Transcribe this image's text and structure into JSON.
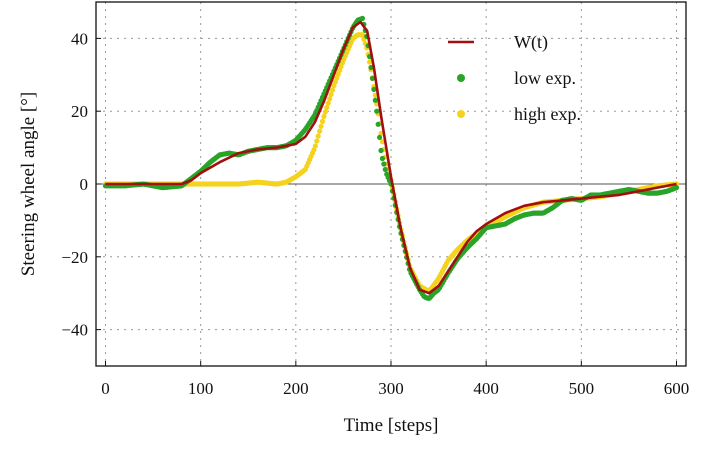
{
  "chart_data": {
    "type": "line",
    "xlabel": "Time [steps]",
    "ylabel": "Steering wheel angle [°]",
    "xlim": [
      -10,
      610
    ],
    "ylim": [
      -50,
      50
    ],
    "xticks": [
      0,
      100,
      200,
      300,
      400,
      500,
      600
    ],
    "yticks": [
      -40,
      -20,
      0,
      20,
      40
    ],
    "grid": true,
    "legend_position": "top-right",
    "series": [
      {
        "name": "W(t)",
        "style": "line",
        "color": "#a01010",
        "x": [
          0,
          20,
          40,
          60,
          80,
          90,
          100,
          120,
          140,
          160,
          180,
          190,
          200,
          210,
          220,
          230,
          240,
          250,
          260,
          268,
          275,
          282,
          290,
          300,
          310,
          320,
          330,
          340,
          350,
          360,
          370,
          380,
          390,
          400,
          420,
          440,
          460,
          480,
          500,
          520,
          540,
          560,
          580,
          600
        ],
        "y": [
          0,
          0,
          0,
          0,
          0,
          1,
          3,
          6,
          8.5,
          9.5,
          10,
          10.5,
          11,
          13,
          17,
          23,
          30,
          37,
          43,
          44.5,
          42,
          32,
          18,
          2,
          -12,
          -23,
          -29,
          -30,
          -28,
          -24,
          -20,
          -16,
          -13,
          -11,
          -8,
          -6,
          -5,
          -4.5,
          -4,
          -3.5,
          -3,
          -2,
          -1,
          0
        ]
      },
      {
        "name": "low exp.",
        "style": "points",
        "color": "#28a428",
        "x": [
          0,
          20,
          40,
          60,
          80,
          90,
          100,
          110,
          120,
          130,
          140,
          150,
          160,
          170,
          180,
          190,
          200,
          210,
          220,
          230,
          240,
          250,
          260,
          265,
          270,
          275,
          280,
          285,
          290,
          295,
          300,
          310,
          320,
          330,
          335,
          340,
          345,
          350,
          360,
          370,
          380,
          390,
          400,
          410,
          420,
          430,
          440,
          450,
          460,
          470,
          480,
          490,
          500,
          510,
          520,
          530,
          540,
          550,
          560,
          570,
          580,
          590,
          600
        ],
        "y": [
          -0.5,
          -0.5,
          0,
          -1,
          -0.5,
          1.5,
          3.5,
          6,
          8,
          8.5,
          8,
          9,
          9.5,
          10,
          10,
          10.5,
          12,
          15,
          19,
          25,
          31,
          37,
          43,
          45,
          45.5,
          40,
          30,
          20,
          8,
          3,
          0,
          -13,
          -24,
          -29,
          -31,
          -31.5,
          -30,
          -29,
          -24.5,
          -20.5,
          -17.5,
          -15,
          -12,
          -11.5,
          -11,
          -9.5,
          -8.5,
          -8,
          -8,
          -6.5,
          -4.5,
          -4,
          -4.5,
          -3,
          -3,
          -2.5,
          -2,
          -1.5,
          -2,
          -2.5,
          -2.5,
          -2,
          -1
        ]
      },
      {
        "name": "high exp.",
        "style": "points",
        "color": "#f5d21e",
        "x": [
          0,
          20,
          40,
          60,
          80,
          100,
          120,
          140,
          160,
          180,
          190,
          200,
          210,
          220,
          230,
          240,
          250,
          260,
          265,
          270,
          275,
          280,
          285,
          290,
          295,
          300,
          310,
          320,
          330,
          340,
          350,
          360,
          370,
          380,
          390,
          400,
          420,
          440,
          460,
          480,
          500,
          520,
          540,
          560,
          580,
          600
        ],
        "y": [
          0,
          0,
          0,
          0,
          0,
          0,
          0,
          0,
          0.5,
          0,
          0.5,
          2,
          4,
          10,
          19,
          27,
          34,
          40,
          41,
          41,
          37,
          30,
          22,
          13,
          6,
          1,
          -12,
          -23,
          -28,
          -29.5,
          -26,
          -21,
          -18,
          -15.5,
          -13.5,
          -12,
          -9,
          -6.5,
          -5,
          -4.5,
          -4,
          -3.5,
          -2.5,
          -1.5,
          -0.5,
          0
        ]
      }
    ]
  }
}
